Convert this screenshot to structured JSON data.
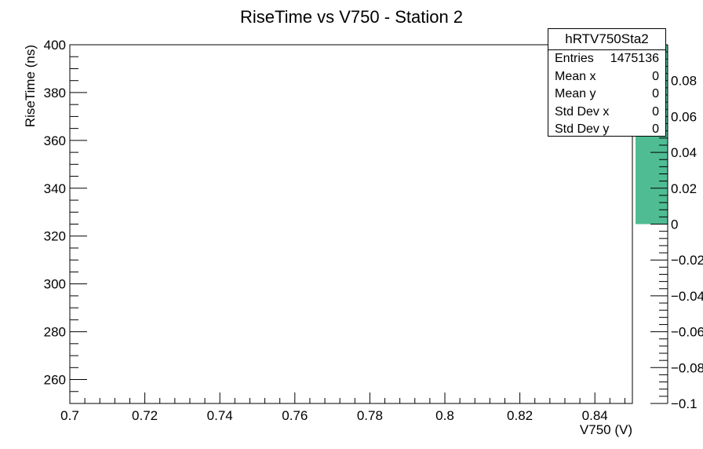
{
  "chart_data": {
    "type": "heatmap",
    "title": "RiseTime vs V750 - Station 2",
    "xlabel": "V750 (V)",
    "ylabel": "RiseTime (ns)",
    "xlim": [
      0.7,
      0.85
    ],
    "ylim": [
      250,
      400
    ],
    "x_ticks": [
      0.7,
      0.72,
      0.74,
      0.76,
      0.78,
      0.8,
      0.82,
      0.84
    ],
    "x_tick_labels": [
      "0.7",
      "0.72",
      "0.74",
      "0.76",
      "0.78",
      "0.8",
      "0.82",
      "0.84"
    ],
    "y_ticks": [
      260,
      280,
      300,
      320,
      340,
      360,
      380,
      400
    ],
    "y_tick_labels": [
      "260",
      "280",
      "300",
      "320",
      "340",
      "360",
      "380",
      "400"
    ],
    "values": [],
    "colorbar": {
      "range": [
        -0.1,
        0.1
      ],
      "ticks": [
        -0.1,
        -0.08,
        -0.06,
        -0.04,
        -0.02,
        0,
        0.02,
        0.04,
        0.06,
        0.08
      ],
      "tick_labels": [
        "−0.1",
        "−0.08",
        "−0.06",
        "−0.04",
        "−0.02",
        "0",
        "0.02",
        "0.04",
        "0.06",
        "0.08"
      ],
      "filled_range": [
        0,
        0.1
      ],
      "fill_color": "#4fbc94"
    },
    "grid": false,
    "stats_box": {
      "title": "hRTV750Sta2",
      "rows": [
        {
          "label": "Entries",
          "value": "1475136"
        },
        {
          "label": "Mean x",
          "value": "0"
        },
        {
          "label": "Mean y",
          "value": "0"
        },
        {
          "label": "Std Dev x",
          "value": "0"
        },
        {
          "label": "Std Dev y",
          "value": "0"
        }
      ]
    }
  }
}
